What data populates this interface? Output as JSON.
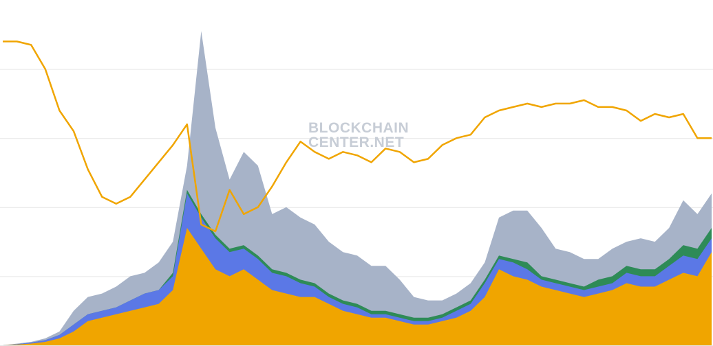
{
  "watermark": {
    "line1": "BLOCKCHAIN",
    "line2": "CENTER.NET"
  },
  "chart_data": {
    "type": "area",
    "title": "",
    "xlabel": "",
    "ylabel": "",
    "grid": true,
    "legend": "none",
    "x": [
      0,
      1,
      2,
      3,
      4,
      5,
      6,
      7,
      8,
      9,
      10,
      11,
      12,
      13,
      14,
      15,
      16,
      17,
      18,
      19,
      20,
      21,
      22,
      23,
      24,
      25,
      26,
      27,
      28,
      29,
      30,
      31,
      32,
      33,
      34,
      35,
      36,
      37,
      38,
      39,
      40,
      41,
      42,
      43,
      44,
      45,
      46,
      47,
      48,
      49,
      50
    ],
    "ylim": [
      0,
      100
    ],
    "series": [
      {
        "color": "#a7b3c8",
        "values": [
          0,
          0.5,
          1,
          2,
          4,
          10,
          14,
          15,
          17,
          20,
          21,
          24,
          30,
          52,
          91,
          63,
          48,
          56,
          52,
          38,
          40,
          37,
          35,
          30,
          27,
          26,
          23,
          23,
          19,
          14,
          13,
          13,
          15,
          18,
          24,
          37,
          39,
          39,
          34,
          28,
          27,
          25,
          25,
          28,
          30,
          31,
          30,
          34,
          42,
          38,
          44
        ]
      },
      {
        "color": "#2e8b57",
        "values": [
          0,
          0.3,
          0.8,
          1.5,
          3,
          6,
          9,
          10,
          11,
          13,
          15,
          16,
          21,
          45,
          38,
          32,
          28,
          29,
          26,
          22,
          21,
          19,
          18,
          15,
          13,
          12,
          10,
          10,
          9,
          8,
          8,
          9,
          11,
          13,
          19,
          26,
          25,
          24,
          20,
          19,
          18,
          17,
          19,
          20,
          23,
          22,
          22,
          25,
          29,
          28,
          34
        ]
      },
      {
        "color": "#5b78e6",
        "values": [
          0,
          0.3,
          0.8,
          1.5,
          3,
          6,
          9,
          10,
          11,
          13,
          15,
          16,
          20,
          44,
          37,
          31,
          27,
          28,
          25,
          21,
          20,
          18,
          17,
          14,
          12,
          11,
          9,
          9,
          8,
          7,
          7,
          8,
          10,
          12,
          18,
          25,
          24,
          22,
          19,
          18,
          17,
          16,
          17,
          18,
          21,
          20,
          20,
          23,
          26,
          25,
          31
        ]
      },
      {
        "color": "#f0a500",
        "values": [
          0,
          0.2,
          0.5,
          1,
          2,
          4,
          7,
          8,
          9,
          10,
          11,
          12,
          16,
          34,
          28,
          22,
          20,
          22,
          19,
          16,
          15,
          14,
          14,
          12,
          10,
          9,
          8,
          8,
          7,
          6,
          6,
          7,
          8,
          10,
          14,
          22,
          20,
          19,
          17,
          16,
          15,
          14,
          15,
          16,
          18,
          17,
          17,
          19,
          21,
          20,
          27
        ]
      },
      {
        "color": "#f0a500",
        "values": [
          88,
          88,
          87,
          80,
          68,
          62,
          51,
          43,
          41,
          43,
          48,
          53,
          58,
          64,
          35,
          33,
          45,
          38,
          40,
          46,
          53,
          59,
          56,
          54,
          56,
          55,
          53,
          57,
          56,
          53,
          54,
          58,
          60,
          61,
          66,
          68,
          69,
          70,
          69,
          70,
          70,
          71,
          69,
          69,
          68,
          65,
          67,
          66,
          67,
          60,
          60
        ]
      }
    ]
  }
}
